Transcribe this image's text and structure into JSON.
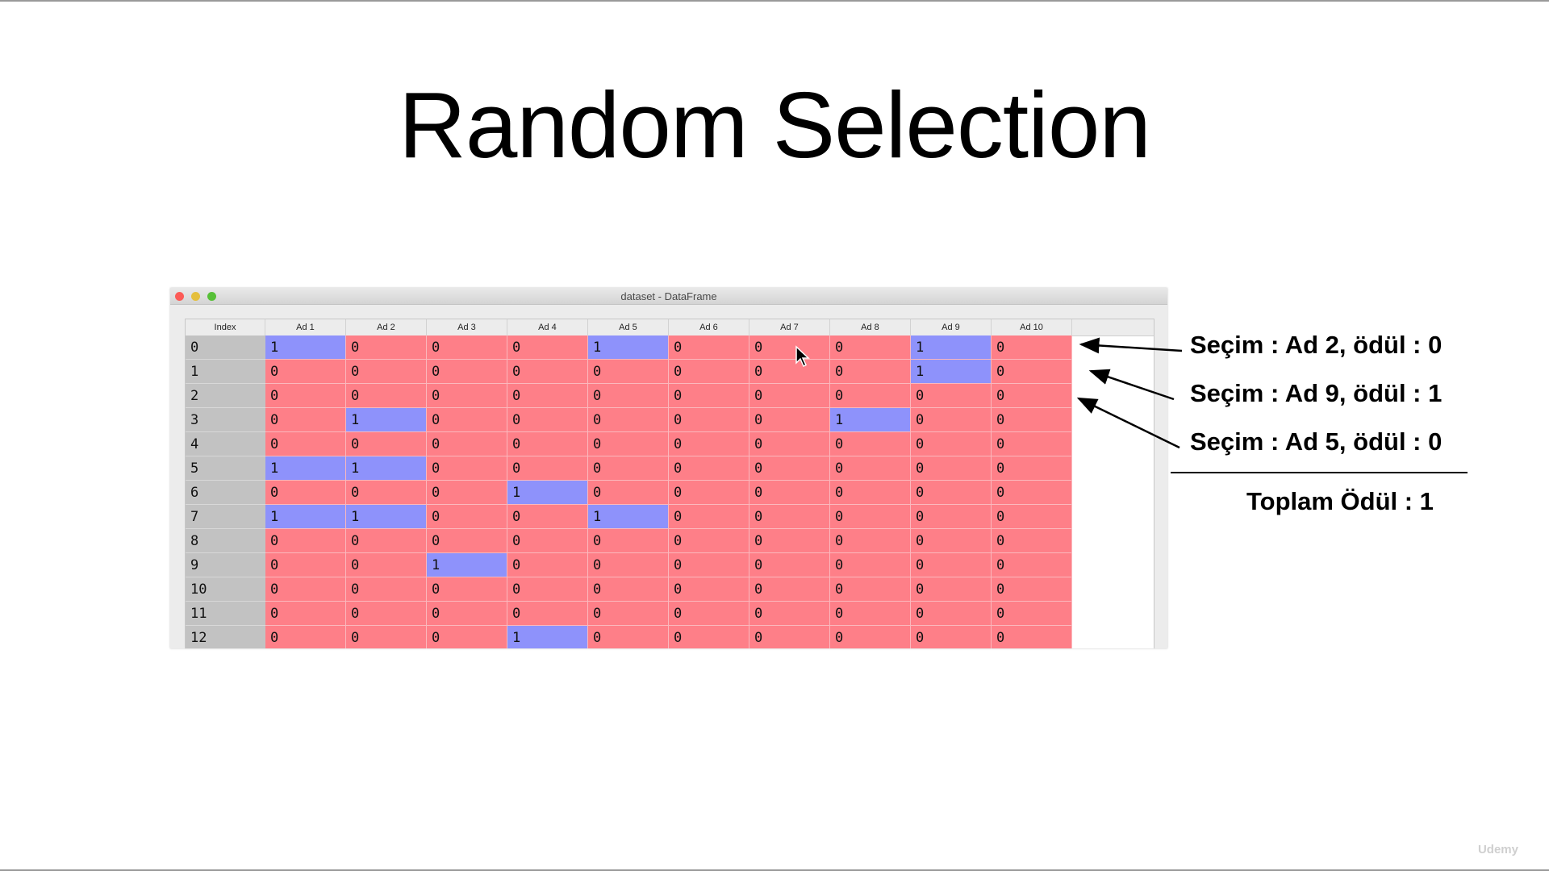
{
  "slide": {
    "title": "Random Selection",
    "watermark": "Udemy"
  },
  "window": {
    "title": "dataset - DataFrame",
    "columns": [
      "Index",
      "Ad 1",
      "Ad 2",
      "Ad 3",
      "Ad 4",
      "Ad 5",
      "Ad 6",
      "Ad 7",
      "Ad 8",
      "Ad 9",
      "Ad 10"
    ],
    "rows": [
      {
        "index": "0",
        "values": [
          "1",
          "0",
          "0",
          "0",
          "1",
          "0",
          "0",
          "0",
          "1",
          "0"
        ]
      },
      {
        "index": "1",
        "values": [
          "0",
          "0",
          "0",
          "0",
          "0",
          "0",
          "0",
          "0",
          "1",
          "0"
        ]
      },
      {
        "index": "2",
        "values": [
          "0",
          "0",
          "0",
          "0",
          "0",
          "0",
          "0",
          "0",
          "0",
          "0"
        ]
      },
      {
        "index": "3",
        "values": [
          "0",
          "1",
          "0",
          "0",
          "0",
          "0",
          "0",
          "1",
          "0",
          "0"
        ]
      },
      {
        "index": "4",
        "values": [
          "0",
          "0",
          "0",
          "0",
          "0",
          "0",
          "0",
          "0",
          "0",
          "0"
        ]
      },
      {
        "index": "5",
        "values": [
          "1",
          "1",
          "0",
          "0",
          "0",
          "0",
          "0",
          "0",
          "0",
          "0"
        ]
      },
      {
        "index": "6",
        "values": [
          "0",
          "0",
          "0",
          "1",
          "0",
          "0",
          "0",
          "0",
          "0",
          "0"
        ]
      },
      {
        "index": "7",
        "values": [
          "1",
          "1",
          "0",
          "0",
          "1",
          "0",
          "0",
          "0",
          "0",
          "0"
        ]
      },
      {
        "index": "8",
        "values": [
          "0",
          "0",
          "0",
          "0",
          "0",
          "0",
          "0",
          "0",
          "0",
          "0"
        ]
      },
      {
        "index": "9",
        "values": [
          "0",
          "0",
          "1",
          "0",
          "0",
          "0",
          "0",
          "0",
          "0",
          "0"
        ]
      },
      {
        "index": "10",
        "values": [
          "0",
          "0",
          "0",
          "0",
          "0",
          "0",
          "0",
          "0",
          "0",
          "0"
        ]
      },
      {
        "index": "11",
        "values": [
          "0",
          "0",
          "0",
          "0",
          "0",
          "0",
          "0",
          "0",
          "0",
          "0"
        ]
      },
      {
        "index": "12",
        "values": [
          "0",
          "0",
          "0",
          "1",
          "0",
          "0",
          "0",
          "0",
          "0",
          "0"
        ]
      }
    ]
  },
  "annotations": {
    "selections": [
      "Seçim : Ad 2, ödül : 0",
      "Seçim : Ad 9, ödül : 1",
      "Seçim : Ad 5, ödül : 0"
    ],
    "total": "Toplam Ödül : 1"
  },
  "colors": {
    "zero_cell": "#fe7f88",
    "one_cell": "#8e92fb",
    "index_column": "#c2c2c2"
  },
  "icons": [
    "window-close-icon",
    "window-minimize-icon",
    "window-maximize-icon",
    "mouse-pointer-icon",
    "arrow-icon"
  ]
}
